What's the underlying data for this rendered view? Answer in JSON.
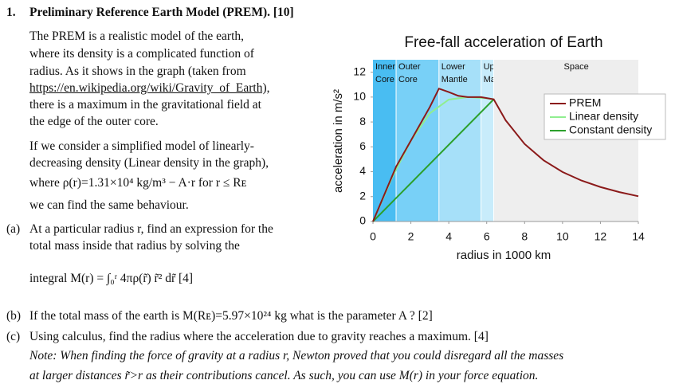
{
  "question": {
    "number": "1.",
    "title": "Preliminary Reference Earth Model (PREM). [10]",
    "intro_lines": [
      "The PREM is a realistic model of the earth,",
      "where its density is a complicated function of",
      "radius.  As it shows in the graph (taken from",
      "https://en.wikipedia.org/wiki/Gravity_of_Earth),",
      "there is a maximum in the gravitational field at",
      "the edge of the outer core."
    ],
    "model_lines": [
      "If we consider a simplified model of linearly-",
      "decreasing density (Linear density in the graph),",
      "where  ρ(r)=1.31×10⁴ kg/m³ − A·r   for  r ≤ Rᴇ",
      "we can find the same behaviour."
    ],
    "parts": [
      {
        "label": "(a)",
        "lines": [
          "At a particular radius r, find an expression for the",
          "total mass inside that radius by solving the",
          "integral  M(r) = ∫₀ʳ 4πρ(r̃) r̃² dr̃    [4]"
        ]
      },
      {
        "label": "(b)",
        "lines": [
          "If the total mass of the earth is  M(Rᴇ)=5.97×10²⁴ kg  what is the parameter  A ? [2]"
        ]
      },
      {
        "label": "(c)",
        "lines": [
          "Using calculus, find the radius where the acceleration due to gravity reaches a maximum. [4]"
        ]
      }
    ],
    "note_lines": [
      "Note: When finding the force of gravity at a radius r, Newton proved that you could disregard all the masses",
      "at larger distances  r̃>r  as their contributions cancel. As such, you can use M(r) in your force equation."
    ]
  },
  "chart_data": {
    "type": "line",
    "title": "Free-fall acceleration of Earth",
    "x_label": "radius in 1000 km",
    "y_label": "acceleration in m/s²",
    "xlim": [
      0,
      14
    ],
    "ylim": [
      0,
      13
    ],
    "xticks": [
      0,
      2,
      4,
      6,
      8,
      10,
      12,
      14
    ],
    "yticks": [
      0,
      2,
      4,
      6,
      8,
      10,
      12
    ],
    "legend": "upper right",
    "regions": [
      {
        "label": [
          "Inner",
          "Core"
        ],
        "start": 0,
        "end": 1.22,
        "color": "#49bdf2"
      },
      {
        "label": [
          "Outer",
          "Core"
        ],
        "start": 1.22,
        "end": 3.48,
        "color": "#78d0f7"
      },
      {
        "label": [
          "Lower",
          "Mantle"
        ],
        "start": 3.48,
        "end": 5.7,
        "color": "#a6e0f9"
      },
      {
        "label": [
          "Upper",
          "Mantle"
        ],
        "start": 5.7,
        "end": 6.37,
        "color": "#c8ecfb"
      },
      {
        "label": [
          "Space"
        ],
        "start": 6.37,
        "end": 14,
        "color": "#eeeeee"
      }
    ],
    "series": [
      {
        "name": "PREM",
        "color": "#8b1a1a",
        "x": [
          0,
          0.5,
          1.22,
          2,
          3,
          3.48,
          4,
          4.5,
          5,
          5.7,
          6.37,
          7,
          8,
          9,
          10,
          11,
          12,
          13,
          14
        ],
        "values": [
          0,
          1.8,
          4.4,
          6.5,
          9.2,
          10.68,
          10.4,
          10.1,
          10.0,
          10.0,
          9.82,
          8.13,
          6.23,
          4.92,
          3.98,
          3.29,
          2.77,
          2.36,
          2.03
        ]
      },
      {
        "name": "Linear density",
        "color": "#90ee90",
        "x": [
          0,
          1,
          2,
          3,
          4,
          5,
          6,
          6.37
        ],
        "values": [
          0,
          3.5,
          6.5,
          8.7,
          9.8,
          10.0,
          9.9,
          9.82
        ]
      },
      {
        "name": "Constant density",
        "color": "#2ca02c",
        "x": [
          0,
          6.37
        ],
        "values": [
          0,
          9.82
        ]
      }
    ]
  }
}
